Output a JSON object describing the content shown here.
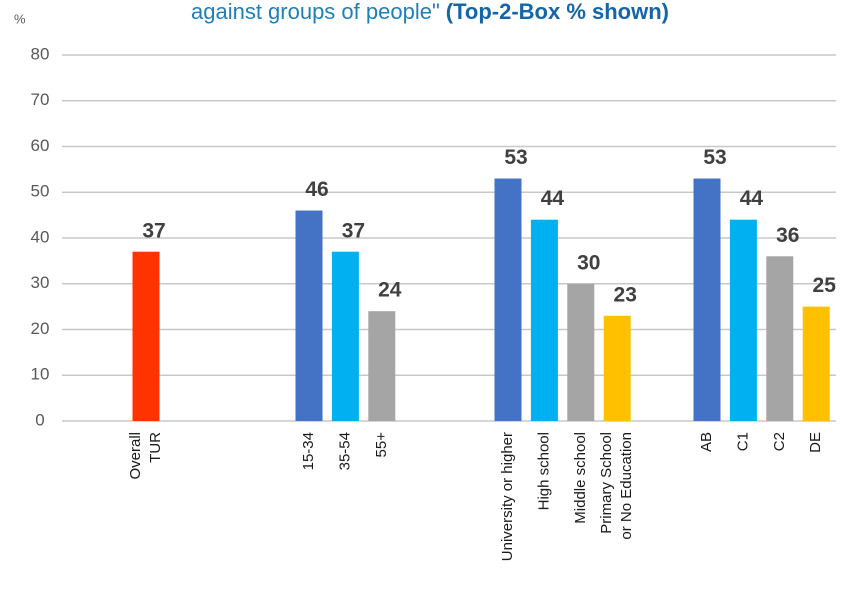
{
  "chart_data": {
    "type": "bar",
    "title": "against groups of people\"",
    "subtitle": "(Top-2-Box % shown)",
    "y_label": "%",
    "ylim": [
      0,
      80
    ],
    "yticks": [
      0,
      10,
      20,
      30,
      40,
      50,
      60,
      70,
      80
    ],
    "grid": true,
    "groups": [
      {
        "categories": [
          [
            "Overall",
            "TUR"
          ]
        ],
        "values": [
          37
        ],
        "colors": [
          "#ff3300"
        ]
      },
      {
        "categories": [
          [
            "15-34"
          ],
          [
            "35-54"
          ],
          [
            "55+"
          ]
        ],
        "values": [
          46,
          37,
          24
        ],
        "colors": [
          "#4472c4",
          "#00b0f0",
          "#a5a5a5"
        ]
      },
      {
        "categories": [
          [
            "University or higher"
          ],
          [
            "High school"
          ],
          [
            "Middle school"
          ],
          [
            "Primary School",
            "or No Education"
          ]
        ],
        "values": [
          53,
          44,
          30,
          23
        ],
        "colors": [
          "#4472c4",
          "#00b0f0",
          "#a5a5a5",
          "#ffc000"
        ]
      },
      {
        "categories": [
          [
            "AB"
          ],
          [
            "C1"
          ],
          [
            "C2"
          ],
          [
            "DE"
          ]
        ],
        "values": [
          53,
          44,
          36,
          25
        ],
        "colors": [
          "#4472c4",
          "#00b0f0",
          "#a5a5a5",
          "#ffc000"
        ]
      }
    ]
  }
}
